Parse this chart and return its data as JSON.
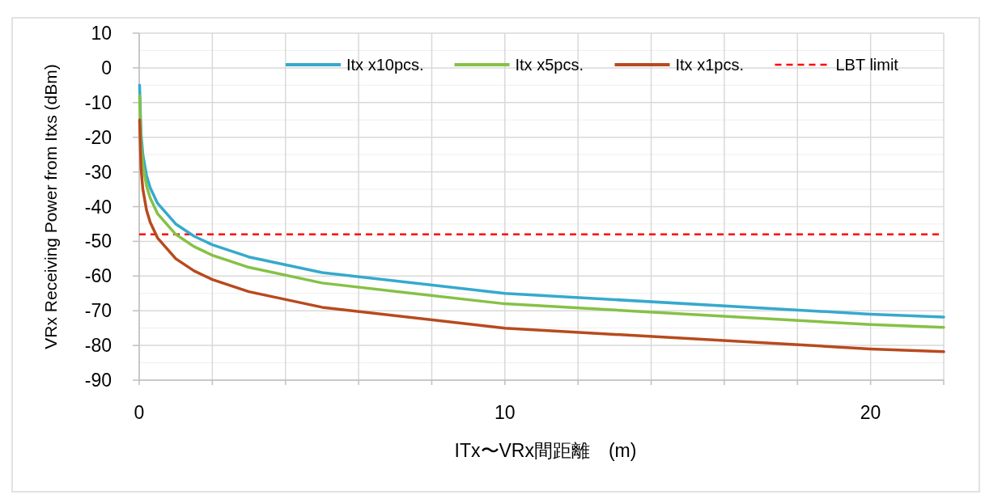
{
  "chart_data": {
    "type": "line",
    "xlabel": "ITx〜VRx間距離　(m)",
    "ylabel": "VRx Receiving Power from Itxs (dBm)",
    "x": [
      0.01,
      0.05,
      0.1,
      0.2,
      0.3,
      0.5,
      1,
      1.5,
      2,
      3,
      5,
      10,
      20,
      22
    ],
    "series": [
      {
        "name": "Itx x10pcs.",
        "color": "#36a9ce",
        "values": [
          -5,
          -19,
          -25,
          -31,
          -34.5,
          -39,
          -45,
          -48.5,
          -51,
          -54.5,
          -59,
          -65,
          -71,
          -71.8
        ]
      },
      {
        "name": "Itx x5pcs.",
        "color": "#86c145",
        "values": [
          -8,
          -22,
          -28,
          -34,
          -37.5,
          -42,
          -48,
          -51.5,
          -54,
          -57.5,
          -62,
          -68,
          -74,
          -74.8
        ]
      },
      {
        "name": "Itx x1pcs.",
        "color": "#b84a1e",
        "values": [
          -15,
          -29,
          -35,
          -41,
          -44.5,
          -49,
          -55,
          -58.5,
          -61,
          -64.5,
          -69,
          -75,
          -81,
          -81.8
        ]
      }
    ],
    "ref_lines": [
      {
        "axis": "y",
        "value": -48,
        "label": "LBT limit",
        "color": "#ff0000",
        "line_style": "dashed"
      }
    ],
    "xlim": [
      0,
      22
    ],
    "xticks": [
      0,
      {
        "value": 2,
        "label": null
      },
      {
        "value": 4,
        "label": null
      },
      {
        "value": 6,
        "label": null
      },
      {
        "value": 8,
        "label": null
      },
      10,
      {
        "value": 12,
        "label": null
      },
      {
        "value": 14,
        "label": null
      },
      {
        "value": 16,
        "label": null
      },
      {
        "value": 18,
        "label": null
      },
      20,
      {
        "value": 22,
        "label": null
      }
    ],
    "ylim": [
      -90,
      10
    ],
    "yticks": [
      -90,
      {
        "value": -85,
        "label": null
      },
      -80,
      {
        "value": -75,
        "label": null
      },
      -70,
      {
        "value": -65,
        "label": null
      },
      -60,
      {
        "value": -55,
        "label": null
      },
      -50,
      {
        "value": -45,
        "label": null
      },
      -40,
      {
        "value": -35,
        "label": null
      },
      -30,
      {
        "value": -25,
        "label": null
      },
      -20,
      {
        "value": -15,
        "label": null
      },
      -10,
      {
        "value": -5,
        "label": null
      },
      0,
      {
        "value": 5,
        "label": null
      },
      10
    ],
    "grid": true,
    "legend": "top",
    "marker": "none",
    "line_style": "solid"
  }
}
